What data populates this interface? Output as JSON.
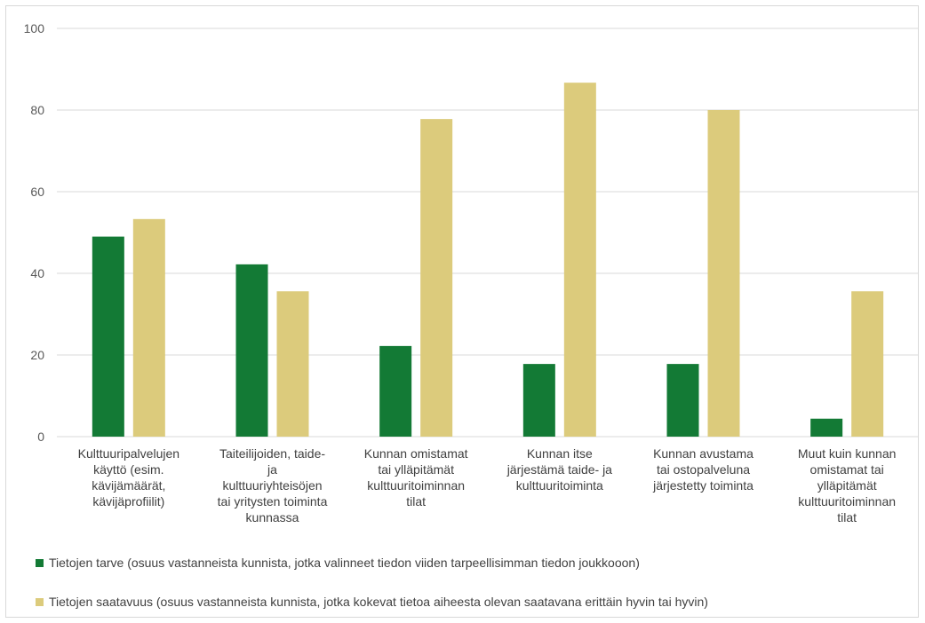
{
  "chart_data": {
    "type": "bar",
    "categories": [
      [
        "Kulttuuripalvelujen",
        "käyttö (esim.",
        "kävijämäärät,",
        "kävijäprofiilit)"
      ],
      [
        "Taiteilijoiden, taide-",
        "ja",
        "kulttuuriyhteisöjen",
        "tai yritysten toiminta",
        "kunnassa"
      ],
      [
        "Kunnan omistamat",
        "tai ylläpitämät",
        "kulttuuritoiminnan",
        "tilat"
      ],
      [
        "Kunnan itse",
        "järjestämä taide- ja",
        "kulttuuritoiminta"
      ],
      [
        "Kunnan avustama",
        "tai ostopalveluna",
        "järjestetty toiminta"
      ],
      [
        "Muut kuin kunnan",
        "omistamat tai",
        "ylläpitämät",
        "kulttuuritoiminnan",
        "tilat"
      ]
    ],
    "series": [
      {
        "name": "Tietojen tarve (osuus vastanneista kunnista, jotka valinneet tiedon viiden tarpeellisimman tiedon joukkooon)",
        "color": "#137a35",
        "values": [
          49,
          42.2,
          22.2,
          17.8,
          17.8,
          4.4
        ]
      },
      {
        "name": "Tietojen saatavuus (osuus vastanneista kunnista, jotka kokevat tietoa aiheesta olevan saatavana erittäin hyvin tai hyvin)",
        "color": "#dccb7c",
        "values": [
          53.3,
          35.6,
          77.8,
          86.7,
          80,
          35.6
        ]
      }
    ],
    "ylim": [
      0,
      100
    ],
    "yticks": [
      0,
      20,
      40,
      60,
      80,
      100
    ],
    "grid": true,
    "legend_position": "bottom"
  }
}
